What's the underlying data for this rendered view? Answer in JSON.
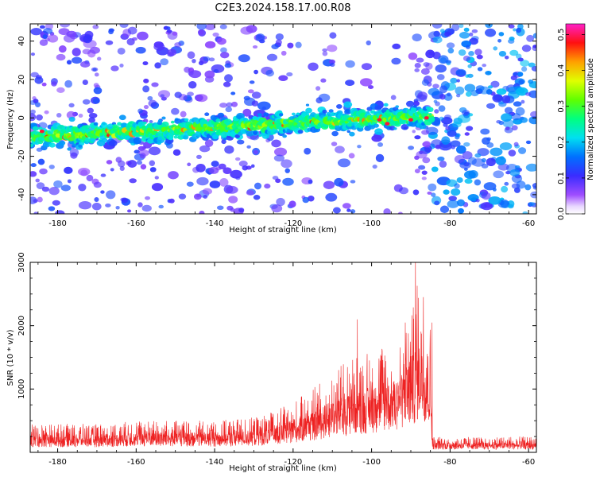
{
  "figure": {
    "title": "C2E3.2024.158.17.00.R08"
  },
  "chart_data": [
    {
      "type": "heatmap",
      "xlabel": "Height of straight line (km)",
      "ylabel": "Frequency (Hz)",
      "xlim": [
        -187,
        -58
      ],
      "ylim": [
        -50,
        49
      ],
      "x_ticks": [
        -180,
        -160,
        -140,
        -120,
        -100,
        -80,
        -60
      ],
      "y_ticks": [
        -40,
        -20,
        0,
        20,
        40
      ],
      "x_tick_labels": [
        "-180",
        "-160",
        "-140",
        "-120",
        "-100",
        "-80",
        "-60"
      ],
      "y_tick_labels": [
        "-40",
        "-20",
        "0",
        "20",
        "40"
      ],
      "colormap": "rainbow (white-violet-blue-cyan-green-yellow-red-magenta)",
      "signal_band": {
        "x_range": [
          -187,
          -85
        ],
        "center_start_hz": -10,
        "center_end_hz": 1,
        "half_width_hz": 5,
        "peak_amplitude": 0.5
      },
      "noise_region_right": {
        "x_range": [
          -85,
          -60
        ],
        "density": "high"
      },
      "colorbar": {
        "label": "Normalized spectral amplitude",
        "range": [
          0.0,
          0.53
        ],
        "ticks": [
          0.0,
          0.1,
          0.2,
          0.3,
          0.4,
          0.5
        ],
        "tick_labels": [
          "0.0",
          "0.1",
          "0.2",
          "0.3",
          "0.4",
          "0.5"
        ]
      }
    },
    {
      "type": "line",
      "xlabel": "Height of straight line (km)",
      "ylabel": "SNR (10 * v/v)",
      "xlim": [
        -187,
        -58
      ],
      "ylim": [
        0,
        3000
      ],
      "x_ticks": [
        -180,
        -160,
        -140,
        -120,
        -100,
        -80,
        -60
      ],
      "y_ticks": [
        1000,
        2000,
        3000
      ],
      "x_tick_labels": [
        "-180",
        "-160",
        "-140",
        "-120",
        "-100",
        "-80",
        "-60"
      ],
      "y_tick_labels": [
        "1000",
        "2000",
        "3000"
      ],
      "series": [
        {
          "color": "#ee2222",
          "envelope": [
            {
              "x": -187,
              "y": 450
            },
            {
              "x": -170,
              "y": 450
            },
            {
              "x": -160,
              "y": 500
            },
            {
              "x": -140,
              "y": 500
            },
            {
              "x": -130,
              "y": 550
            },
            {
              "x": -125,
              "y": 650
            },
            {
              "x": -120,
              "y": 800
            },
            {
              "x": -115,
              "y": 1000
            },
            {
              "x": -110,
              "y": 1300
            },
            {
              "x": -105,
              "y": 1500
            },
            {
              "x": -100,
              "y": 1650
            },
            {
              "x": -95,
              "y": 1800
            },
            {
              "x": -90,
              "y": 2100
            },
            {
              "x": -88,
              "y": 2800
            },
            {
              "x": -85,
              "y": 2000
            },
            {
              "x": -84.5,
              "y": 250
            },
            {
              "x": -58,
              "y": 250
            }
          ],
          "peaks": [
            {
              "x": -88.8,
              "y": 3000
            },
            {
              "x": -86.8,
              "y": 2450
            },
            {
              "x": -84.6,
              "y": 2050
            },
            {
              "x": -103.6,
              "y": 2100
            },
            {
              "x": -91.4,
              "y": 2050
            }
          ]
        }
      ]
    }
  ]
}
